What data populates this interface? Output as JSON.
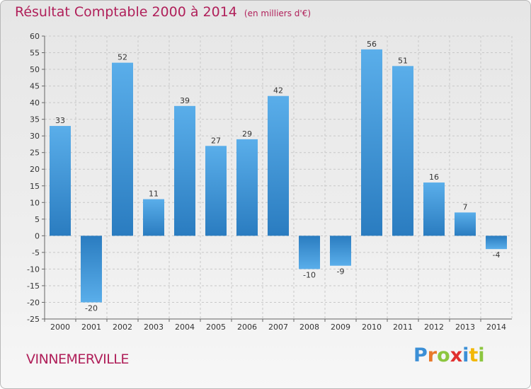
{
  "header": {
    "title": "Résultat Comptable 2000 à 2014",
    "unit": "(en milliers d'€)"
  },
  "footer": {
    "commune": "VINNEMERVILLE",
    "logo_letters": [
      "P",
      "r",
      "o",
      "x",
      "i",
      "t",
      "i"
    ],
    "logo_colors": [
      "#3b8fd6",
      "#e8792b",
      "#8cc63f",
      "#e0302f",
      "#3b8fd6",
      "#f2b705",
      "#8cc63f"
    ]
  },
  "colors": {
    "title": "#b0205a",
    "bar_light": "#5aaeea",
    "bar_dark": "#2a7cc0",
    "grid": "#c8c8c8"
  },
  "chart_data": {
    "type": "bar",
    "title": "Résultat Comptable 2000 à 2014",
    "categories": [
      "2000",
      "2001",
      "2002",
      "2003",
      "2004",
      "2005",
      "2006",
      "2007",
      "2008",
      "2009",
      "2010",
      "2011",
      "2012",
      "2013",
      "2014"
    ],
    "values": [
      33,
      -20,
      52,
      11,
      39,
      27,
      29,
      42,
      -10,
      -9,
      56,
      51,
      16,
      7,
      -4
    ],
    "ylim": [
      -25,
      60
    ],
    "yticks": [
      60,
      55,
      50,
      45,
      40,
      35,
      30,
      25,
      20,
      15,
      10,
      5,
      0,
      -5,
      -10,
      -15,
      -20,
      -25
    ],
    "xlabel": "",
    "ylabel": "",
    "grid": "horizontal",
    "legend": "none"
  }
}
